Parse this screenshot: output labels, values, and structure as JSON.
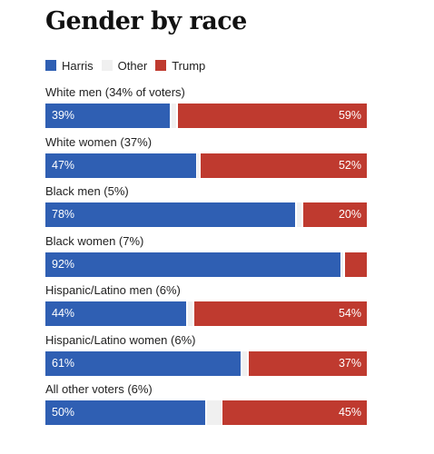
{
  "title": "Gender by race",
  "legend": [
    {
      "name": "Harris",
      "color": "#2f5fb3"
    },
    {
      "name": "Other",
      "color": "#f0f0f0"
    },
    {
      "name": "Trump",
      "color": "#bf3a2f"
    }
  ],
  "chart_data": {
    "type": "bar",
    "stacked": true,
    "orientation": "horizontal",
    "title": "Gender by race",
    "categories": [
      "White men (34% of voters)",
      "White women (37%)",
      "Black men (5%)",
      "Black women (7%)",
      "Hispanic/Latino men (6%)",
      "Hispanic/Latino women (6%)",
      "All other voters (6%)"
    ],
    "series": [
      {
        "name": "Harris",
        "color": "#2f5fb3",
        "values": [
          39,
          47,
          78,
          92,
          44,
          61,
          50
        ],
        "labels": [
          "39%",
          "47%",
          "78%",
          "92%",
          "44%",
          "61%",
          "50%"
        ]
      },
      {
        "name": "Other",
        "color": "#f0f0f0",
        "values": [
          2,
          1,
          2,
          1,
          2,
          2,
          5
        ],
        "labels": [
          "",
          "",
          "",
          "",
          "",
          "",
          ""
        ]
      },
      {
        "name": "Trump",
        "color": "#bf3a2f",
        "values": [
          59,
          52,
          20,
          7,
          54,
          37,
          45
        ],
        "labels": [
          "59%",
          "52%",
          "20%",
          "",
          "54%",
          "37%",
          "45%"
        ]
      }
    ],
    "xlim": [
      0,
      100
    ],
    "legend_position": "top-left"
  }
}
